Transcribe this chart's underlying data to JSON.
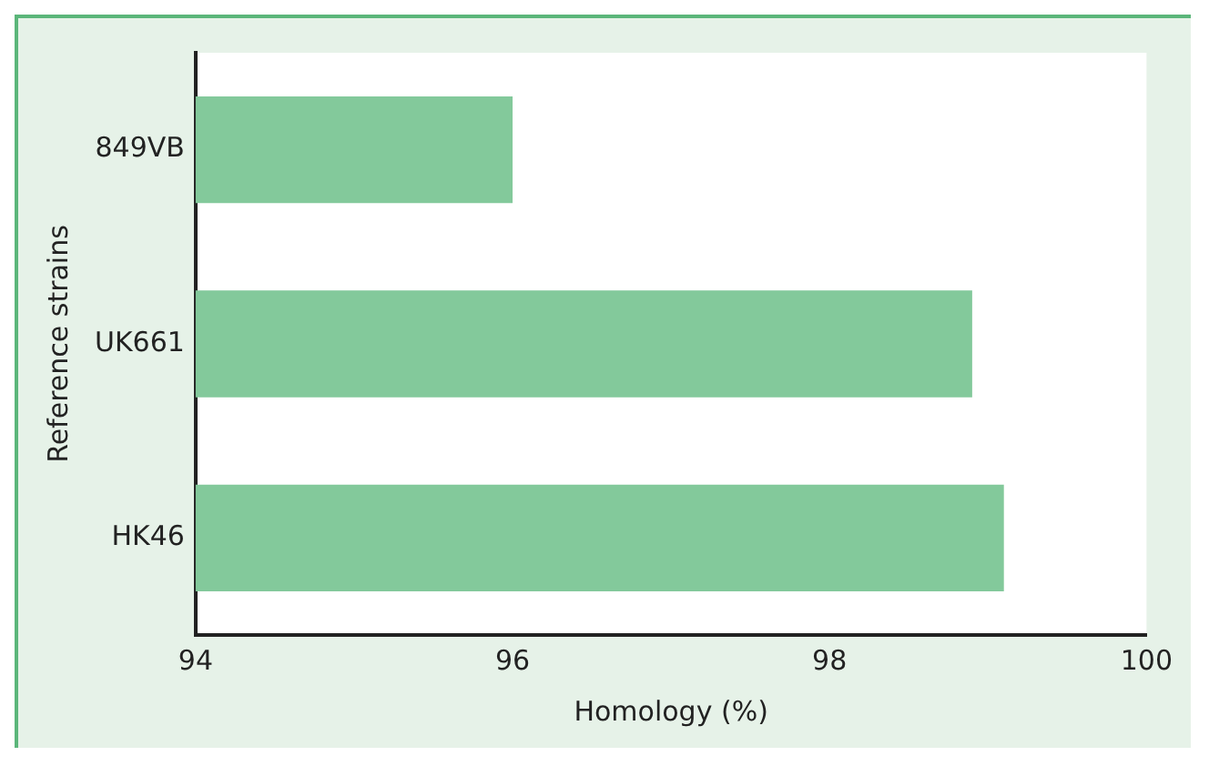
{
  "chart_data": {
    "type": "bar",
    "orientation": "horizontal",
    "xlabel": "Homology (%)",
    "ylabel": "Reference strains",
    "categories": [
      "849VB",
      "UK661",
      "HK46"
    ],
    "values": [
      96.0,
      98.9,
      99.1
    ],
    "color": "#83c99b",
    "xlim": [
      94,
      100
    ],
    "xticks": [
      94,
      96,
      98,
      100
    ],
    "grid": false,
    "legend": false
  }
}
